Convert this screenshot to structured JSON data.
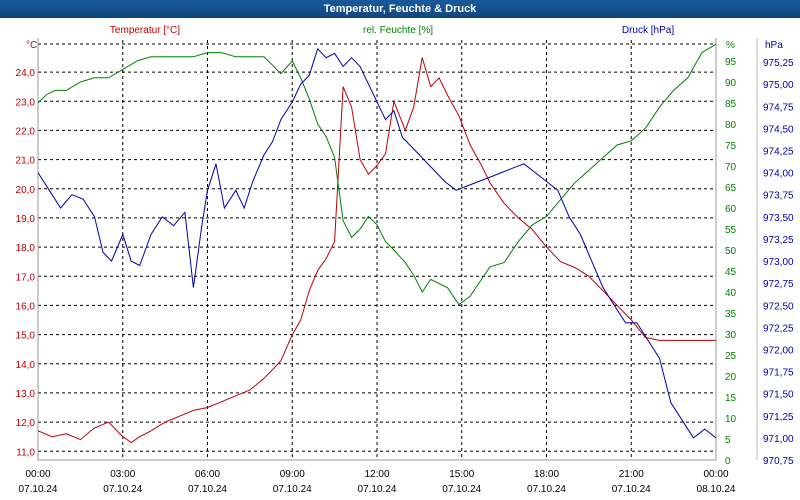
{
  "chart_data": {
    "type": "line",
    "title": "Temperatur, Feuchte & Druck",
    "colors": {
      "temperature": "#c00000",
      "humidity": "#008000",
      "pressure": "#0000b0"
    },
    "axes": {
      "temperature": {
        "label": "Temperatur [°C]",
        "unit": "°C",
        "ylim": [
          10.7,
          25.1
        ],
        "ticks": [
          "11,0",
          "12,0",
          "13,0",
          "14,0",
          "15,0",
          "16,0",
          "17,0",
          "18,0",
          "19,0",
          "20,0",
          "21,0",
          "22,0",
          "23,0",
          "24,0"
        ],
        "tick_values": [
          11,
          12,
          13,
          14,
          15,
          16,
          17,
          18,
          19,
          20,
          21,
          22,
          23,
          24
        ]
      },
      "humidity": {
        "label": "rel. Feuchte [%]",
        "unit": "%",
        "ylim": [
          0,
          100
        ],
        "ticks": [
          "0",
          "5",
          "10",
          "15",
          "20",
          "25",
          "30",
          "35",
          "40",
          "45",
          "50",
          "55",
          "60",
          "65",
          "70",
          "75",
          "80",
          "85",
          "90",
          "95"
        ],
        "tick_values": [
          0,
          5,
          10,
          15,
          20,
          25,
          30,
          35,
          40,
          45,
          50,
          55,
          60,
          65,
          70,
          75,
          80,
          85,
          90,
          95
        ]
      },
      "pressure": {
        "label": "Druck [hPa]",
        "unit": "hPa",
        "ylim": [
          970.75,
          975.5
        ],
        "ticks": [
          "970,75",
          "971,00",
          "971,25",
          "971,50",
          "971,75",
          "972,00",
          "972,25",
          "972,50",
          "972,75",
          "973,00",
          "973,25",
          "973,50",
          "973,75",
          "974,00",
          "974,25",
          "974,50",
          "974,75",
          "975,00",
          "975,25"
        ],
        "tick_values": [
          970.75,
          971.0,
          971.25,
          971.5,
          971.75,
          972.0,
          972.25,
          972.5,
          972.75,
          973.0,
          973.25,
          973.5,
          973.75,
          974.0,
          974.25,
          974.5,
          974.75,
          975.0,
          975.25
        ]
      }
    },
    "x_ticks": [
      {
        "time": "00:00",
        "date": "07.10.24"
      },
      {
        "time": "03:00",
        "date": "07.10.24"
      },
      {
        "time": "06:00",
        "date": "07.10.24"
      },
      {
        "time": "09:00",
        "date": "07.10.24"
      },
      {
        "time": "12:00",
        "date": "07.10.24"
      },
      {
        "time": "15:00",
        "date": "07.10.24"
      },
      {
        "time": "18:00",
        "date": "07.10.24"
      },
      {
        "time": "21:00",
        "date": "07.10.24"
      },
      {
        "time": "00:00",
        "date": "08.10.24"
      }
    ],
    "x_range_hours": [
      0,
      24
    ],
    "series": [
      {
        "name": "Temperatur",
        "axis": "temperature",
        "x": [
          0,
          0.5,
          1,
          1.5,
          2,
          2.5,
          3,
          3.3,
          3.6,
          4,
          4.5,
          5,
          5.5,
          6,
          6.5,
          7,
          7.5,
          8,
          8.3,
          8.6,
          9,
          9.3,
          9.6,
          9.9,
          10.2,
          10.5,
          10.8,
          11.1,
          11.4,
          11.7,
          12,
          12.3,
          12.6,
          13,
          13.3,
          13.6,
          13.9,
          14.2,
          14.5,
          14.9,
          15.3,
          15.7,
          16,
          16.5,
          17,
          17.5,
          18,
          18.5,
          19,
          19.5,
          20,
          20.5,
          21,
          21.5,
          22,
          22.5,
          23,
          23.5,
          24
        ],
        "values": [
          11.7,
          11.5,
          11.6,
          11.4,
          11.8,
          12.0,
          11.5,
          11.3,
          11.5,
          11.7,
          12.0,
          12.2,
          12.4,
          12.5,
          12.7,
          12.9,
          13.1,
          13.5,
          13.8,
          14.1,
          15.0,
          15.5,
          16.5,
          17.2,
          17.6,
          18.2,
          23.5,
          22.8,
          21.0,
          20.5,
          20.8,
          21.2,
          23.0,
          22.0,
          22.8,
          24.5,
          23.5,
          23.8,
          23.2,
          22.5,
          21.5,
          20.8,
          20.2,
          19.5,
          19.0,
          18.6,
          18.0,
          17.5,
          17.3,
          17.0,
          16.5,
          16.0,
          15.5,
          14.9,
          14.8,
          14.8,
          14.8,
          14.8,
          14.8
        ]
      },
      {
        "name": "rel. Feuchte",
        "axis": "humidity",
        "x": [
          0,
          0.3,
          0.6,
          1,
          1.5,
          2,
          2.5,
          3,
          3.5,
          4,
          4.5,
          5,
          5.5,
          6,
          6.5,
          7,
          7.5,
          8,
          8.3,
          8.6,
          9,
          9.3,
          9.6,
          9.9,
          10.2,
          10.5,
          10.8,
          11.1,
          11.4,
          11.7,
          12,
          12.3,
          12.6,
          13,
          13.3,
          13.6,
          13.9,
          14.2,
          14.5,
          14.9,
          15.3,
          15.7,
          16,
          16.5,
          17,
          17.5,
          18,
          18.5,
          19,
          19.5,
          20,
          20.5,
          21,
          21.5,
          22,
          22.5,
          23,
          23.5,
          24
        ],
        "values": [
          85,
          87,
          88,
          88,
          90,
          91,
          91,
          93,
          95,
          96,
          96,
          96,
          96,
          97,
          97,
          96,
          96,
          96,
          94,
          92,
          95,
          91,
          86,
          80,
          77,
          72,
          57,
          53,
          55,
          58,
          56,
          52,
          50,
          47,
          44,
          40,
          43,
          42,
          41,
          37,
          39,
          43,
          46,
          47,
          52,
          56,
          58,
          62,
          66,
          69,
          72,
          75,
          76,
          79,
          84,
          88,
          91,
          97,
          99
        ]
      },
      {
        "name": "Druck",
        "axis": "pressure",
        "x": [
          0,
          0.4,
          0.8,
          1.2,
          1.6,
          2,
          2.3,
          2.6,
          3,
          3.3,
          3.6,
          4,
          4.4,
          4.8,
          5.2,
          5.5,
          5.8,
          6,
          6.3,
          6.6,
          7,
          7.3,
          7.6,
          8,
          8.3,
          8.6,
          9,
          9.3,
          9.6,
          9.9,
          10.2,
          10.5,
          10.8,
          11.1,
          11.4,
          11.7,
          12,
          12.3,
          12.6,
          12.9,
          13.2,
          13.5,
          13.8,
          14.1,
          14.4,
          14.8,
          15.2,
          15.6,
          16,
          16.4,
          16.8,
          17.2,
          17.6,
          18,
          18.4,
          18.8,
          19.2,
          19.6,
          20,
          20.4,
          20.8,
          21.2,
          21.6,
          22,
          22.4,
          22.8,
          23.2,
          23.6,
          24
        ],
        "values": [
          974.0,
          973.8,
          973.6,
          973.75,
          973.7,
          973.5,
          973.1,
          973.0,
          973.3,
          973.0,
          972.95,
          973.3,
          973.5,
          973.4,
          973.55,
          972.7,
          973.4,
          973.8,
          974.1,
          973.6,
          973.8,
          973.6,
          973.9,
          974.2,
          974.35,
          974.6,
          974.8,
          975.0,
          975.1,
          975.4,
          975.3,
          975.35,
          975.2,
          975.3,
          975.2,
          975.0,
          974.8,
          974.6,
          974.7,
          974.4,
          974.3,
          974.2,
          974.1,
          974.0,
          973.9,
          973.8,
          973.85,
          973.9,
          973.95,
          974.0,
          974.05,
          974.1,
          974.0,
          973.9,
          973.8,
          973.5,
          973.3,
          973.0,
          972.7,
          972.5,
          972.3,
          972.3,
          972.1,
          971.9,
          971.4,
          971.2,
          971.0,
          971.1,
          971.0
        ]
      }
    ]
  }
}
